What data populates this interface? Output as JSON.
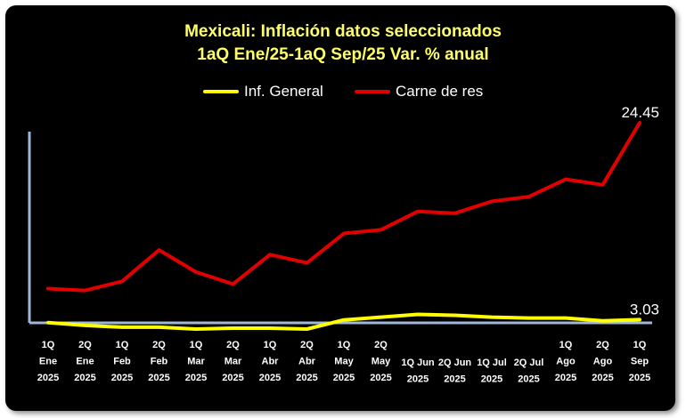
{
  "chart_data": {
    "type": "line",
    "title_line1": "Mexicali: Inflación datos seleccionados",
    "title_line2": "1aQ Ene/25-1aQ Sep/25 Var. % anual",
    "xlabel": "",
    "ylabel": "",
    "ylim": [
      2,
      26
    ],
    "grid": false,
    "legend_position": "top-center",
    "categories": [
      [
        "1Q",
        "Ene",
        "2025"
      ],
      [
        "2Q",
        "Ene",
        "2025"
      ],
      [
        "1Q",
        "Feb",
        "2025"
      ],
      [
        "2Q",
        "Feb",
        "2025"
      ],
      [
        "1Q",
        "Mar",
        "2025"
      ],
      [
        "2Q",
        "Mar",
        "2025"
      ],
      [
        "1Q",
        "Abr",
        "2025"
      ],
      [
        "2Q",
        "Abr",
        "2025"
      ],
      [
        "1Q",
        "May",
        "2025"
      ],
      [
        "2Q",
        "May",
        "2025"
      ],
      [
        "1Q Jun",
        "2025"
      ],
      [
        "2Q Jun",
        "2025"
      ],
      [
        "1Q Jul",
        "2025"
      ],
      [
        "2Q Jul",
        "2025"
      ],
      [
        "1Q",
        "Ago",
        "2025"
      ],
      [
        "2Q",
        "Ago",
        "2025"
      ],
      [
        "1Q",
        "Sep",
        "2025"
      ]
    ],
    "series": [
      {
        "name": "Inf. General",
        "color": "#ffff00",
        "values": [
          2.7,
          2.4,
          2.2,
          2.2,
          2.0,
          2.1,
          2.1,
          2.0,
          3.0,
          3.3,
          3.6,
          3.5,
          3.3,
          3.2,
          3.2,
          2.9,
          3.03
        ],
        "end_label": "3.03"
      },
      {
        "name": "Carne de res",
        "color": "#e00000",
        "values": [
          6.4,
          6.2,
          7.2,
          10.6,
          8.2,
          6.9,
          10.1,
          9.2,
          12.4,
          12.8,
          14.8,
          14.6,
          15.9,
          16.4,
          18.3,
          17.7,
          24.45
        ],
        "end_label": "24.45"
      }
    ]
  }
}
